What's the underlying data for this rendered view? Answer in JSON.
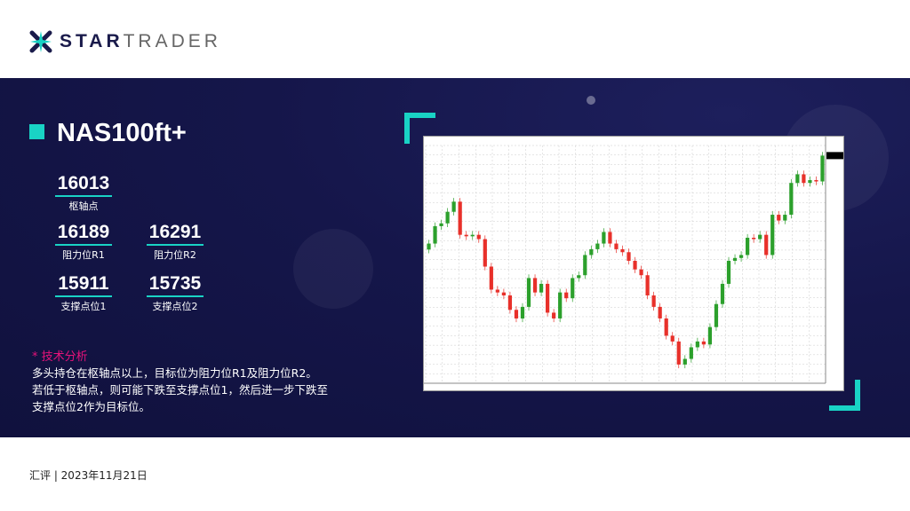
{
  "brand": {
    "name_part1": "STAR",
    "name_part2": "TRADER"
  },
  "instrument": "NAS100ft+",
  "levels": {
    "pivot": {
      "value": "16013",
      "label": "枢轴点"
    },
    "r1": {
      "value": "16189",
      "label": "阻力位R1"
    },
    "r2": {
      "value": "16291",
      "label": "阻力位R2"
    },
    "s1": {
      "value": "15911",
      "label": "支撑点位1"
    },
    "s2": {
      "value": "15735",
      "label": "支撑点位2"
    }
  },
  "analysis": {
    "heading": "* 技术分析",
    "lines": [
      "多头持仓在枢轴点以上，目标位为阻力位R1及阻力位R2。",
      "若低于枢轴点，则可能下跌至支撑点位1，然后进一步下跌至",
      "支撑点位2作为目标位。"
    ]
  },
  "footer": "汇评 | 2023年11月21日",
  "colors": {
    "accent": "#19d3c5",
    "highlight": "#e8127a",
    "up": "#2ca02c",
    "down": "#e8302a",
    "panel": "#15164a"
  },
  "chart_data": {
    "type": "candlestick",
    "title": "",
    "ylim": [
      14580,
      16180
    ],
    "grid": true,
    "closes": [
      15520,
      15637,
      15656,
      15734,
      15802,
      15579,
      15569,
      15579,
      15550,
      15365,
      15210,
      15191,
      15171,
      15074,
      15016,
      15094,
      15288,
      15191,
      15249,
      15055,
      15016,
      15191,
      15152,
      15288,
      15307,
      15443,
      15482,
      15520,
      15598,
      15520,
      15482,
      15462,
      15404,
      15346,
      15307,
      15171,
      15094,
      15016,
      14900,
      14861,
      14706,
      14744,
      14822,
      14861,
      14841,
      14958,
      15113,
      15249,
      15404,
      15423,
      15443,
      15559,
      15550,
      15579,
      15443,
      15714,
      15675,
      15714,
      15928,
      15986,
      15928,
      15947,
      15938,
      16112
    ]
  }
}
